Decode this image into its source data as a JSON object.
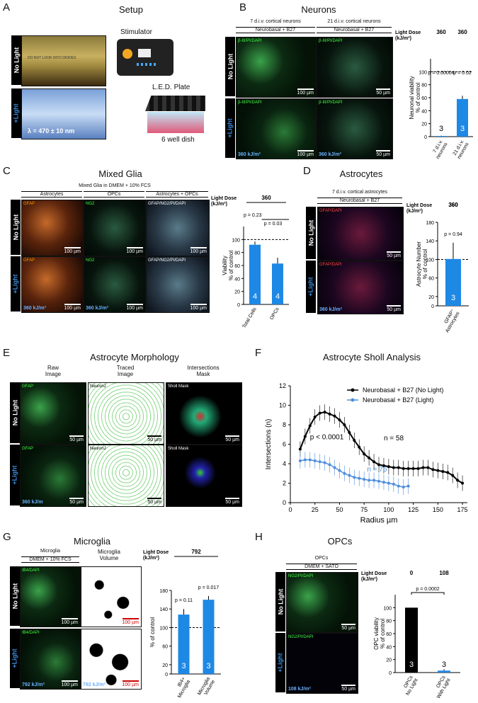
{
  "panels": {
    "A": {
      "letter": "A",
      "title": "Setup",
      "no_light": "No Light",
      "light": "+Light",
      "wavelength": "λ = 470 ± 10 nm",
      "stimulator": "Stimulator",
      "led_plate": "L.E.D. Plate",
      "dish": "6 well dish",
      "box_sticker": "DO NOT LOOK INTO DIODES"
    },
    "B": {
      "letter": "B",
      "title": "Neurons",
      "col1": "7 d.i.v. cortical neurons",
      "col2": "21 d.i.v. cortical neurons",
      "medium": "Neurobasal + B27",
      "stain": "β-III/PI/DAPI",
      "dose": "360 kJ/m²",
      "scale1": "100 µm",
      "scale2": "50 µm",
      "no_light": "No Light",
      "light": "+Light"
    },
    "C": {
      "letter": "C",
      "title": "Mixed Glia",
      "medium": "Mixed Glia in DMEM + 10% FCS",
      "cols": [
        "Astrocytes",
        "OPCs",
        "Astrocytes + OPCs"
      ],
      "stains": [
        "GFAP",
        "NG2",
        "GFAP/NG2/PI/DAPI"
      ],
      "dose": "360 kJ/m²",
      "scale": "100 µm",
      "no_light": "No Light",
      "light": "+Light"
    },
    "D": {
      "letter": "D",
      "title": "Astrocytes",
      "col": "7 d.i.v. cortical astrocytes",
      "medium": "Neurobasal + B27",
      "stain": "GFAP/DAPI",
      "dose": "360 kJ/m²",
      "scale": "50 µm",
      "no_light": "No Light",
      "light": "+Light"
    },
    "E": {
      "letter": "E",
      "title": "Astrocyte Morphology",
      "cols": [
        "Raw\nImage",
        "Traced\nImage",
        "Intersections\nMask"
      ],
      "stain": "GFAP",
      "neuronj": "NeuronJ",
      "sholl": "Sholl Mask",
      "dose": "360 kJ/m",
      "scale": "50 µm",
      "no_light": "No Light",
      "light": "+Light"
    },
    "F": {
      "letter": "F",
      "title": "Astrocyte Sholl Analysis"
    },
    "G": {
      "letter": "G",
      "title": "Microglia",
      "col1": "Microglia",
      "col2": "Microglia\nVolume",
      "medium": "DMEM + 10% FCS",
      "stain": "IB4/DAPI",
      "dose": "792 kJ/m²",
      "scale": "100 µm",
      "no_light": "No Light",
      "light": "+Light"
    },
    "H": {
      "letter": "H",
      "title": "OPCs",
      "col": "OPCs",
      "medium": "DMEM + SATO",
      "stain": "NG2/PI/DAPI",
      "dose": "108 kJ/m²",
      "scale": "50 µm",
      "no_light": "No Light",
      "light": "+Light"
    }
  },
  "chart_data": [
    {
      "id": "B",
      "type": "bar",
      "dose_header": "Light Dose\n(kJ/m²)",
      "doses": [
        "360",
        "360"
      ],
      "categories": [
        "7 d.i.v.\nneurons",
        "21 d.i.v.\nneurons"
      ],
      "values": [
        1,
        58
      ],
      "errors": [
        0.5,
        5
      ],
      "n": [
        "3",
        "3"
      ],
      "pvalues": [
        "p = 0.00004",
        "p = 0.02"
      ],
      "ylabel": "Neuronal viability\n% of control",
      "ylim": [
        0,
        120
      ],
      "yticks": [
        0,
        20,
        40,
        60,
        80,
        100
      ],
      "reference": 100,
      "color": "#1e88e5"
    },
    {
      "id": "C",
      "type": "bar",
      "dose_header": "Light Dose\n(kJ/m²)",
      "doses": [
        "360"
      ],
      "categories": [
        "Total Cells",
        "OPCs"
      ],
      "values": [
        92,
        63
      ],
      "errors": [
        5,
        9
      ],
      "n": [
        "4",
        "4"
      ],
      "pvalues": [
        "p = 0.23",
        "p = 0.03"
      ],
      "ylabel": "Viability\n% of control",
      "ylim": [
        0,
        120
      ],
      "yticks": [
        0,
        20,
        40,
        60,
        80,
        100
      ],
      "reference": 100,
      "color": "#1e88e5"
    },
    {
      "id": "D",
      "type": "bar",
      "dose_header": "Light Dose\n(kJ/m²)",
      "doses": [
        "360"
      ],
      "categories": [
        "GFAP⁺\nAstrocytes"
      ],
      "values": [
        101
      ],
      "errors": [
        35
      ],
      "n": [
        "3"
      ],
      "pvalues": [
        "p = 0.94"
      ],
      "ylabel": "Astrocyte Number\n% of control",
      "ylim": [
        0,
        180
      ],
      "yticks": [
        0,
        20,
        60,
        100,
        140,
        180
      ],
      "reference": 100,
      "color": "#1e88e5"
    },
    {
      "id": "F",
      "type": "line",
      "xlabel": "Radius µm",
      "ylabel": "Intersections (n)",
      "xlim": [
        0,
        180
      ],
      "ylim": [
        0,
        12
      ],
      "xticks": [
        0,
        25,
        50,
        75,
        100,
        125,
        150,
        175
      ],
      "yticks": [
        0,
        2,
        4,
        6,
        8,
        10,
        12
      ],
      "series": [
        {
          "name": "Neurobasal + B27 (No Light)",
          "color": "#000000",
          "x": [
            10,
            15,
            20,
            25,
            30,
            35,
            40,
            45,
            50,
            55,
            60,
            65,
            70,
            75,
            80,
            85,
            90,
            95,
            100,
            105,
            110,
            115,
            120,
            125,
            130,
            135,
            140,
            145,
            150,
            155,
            160,
            165,
            170,
            175
          ],
          "y": [
            5.5,
            6.8,
            7.9,
            8.8,
            9.2,
            9.3,
            9.1,
            8.9,
            8.5,
            8.0,
            7.2,
            6.4,
            5.7,
            5.0,
            4.6,
            4.2,
            3.9,
            3.8,
            3.7,
            3.6,
            3.6,
            3.5,
            3.5,
            3.5,
            3.5,
            3.6,
            3.6,
            3.4,
            3.3,
            3.2,
            3.1,
            2.8,
            2.3,
            2.0
          ]
        },
        {
          "name": "Neurobasal + B27 (Light)",
          "color": "#4f8fdc",
          "x": [
            10,
            15,
            20,
            25,
            30,
            35,
            40,
            45,
            50,
            55,
            60,
            65,
            70,
            75,
            80,
            85,
            90,
            95,
            100,
            105,
            110,
            115,
            120
          ],
          "y": [
            4.3,
            4.4,
            4.4,
            4.3,
            4.2,
            4.1,
            3.9,
            3.6,
            3.3,
            3.0,
            2.8,
            2.6,
            2.5,
            2.4,
            2.3,
            2.3,
            2.2,
            2.1,
            2.0,
            1.9,
            1.7,
            1.6,
            1.7
          ]
        }
      ],
      "annotations": [
        "p < 0.0001",
        "n = 58",
        "n = 76"
      ]
    },
    {
      "id": "G",
      "type": "bar",
      "dose_header": "Light Dose\n(kJ/m²)",
      "doses": [
        "792"
      ],
      "categories": [
        "IB4+\nMicroglia",
        "Microglia\nVolume"
      ],
      "values": [
        128,
        160
      ],
      "errors": [
        12,
        8
      ],
      "n": [
        "3",
        "3"
      ],
      "pvalues": [
        "p = 0.11",
        "p = 0.017"
      ],
      "ylabel": "% of control",
      "ylim": [
        0,
        180
      ],
      "yticks": [
        0,
        20,
        60,
        100,
        140,
        180
      ],
      "reference": 100,
      "color": "#1e88e5"
    },
    {
      "id": "H",
      "type": "bar",
      "dose_header": "Light Dose\n(kJ/m²)",
      "doses": [
        "0",
        "108"
      ],
      "categories": [
        "OPCs\nNo Light",
        "OPCs\nWith Light"
      ],
      "values": [
        100,
        3
      ],
      "errors": [
        0,
        2
      ],
      "n": [
        "3",
        "3"
      ],
      "colors": [
        "#000000",
        "#1e88e5"
      ],
      "pvalues": [
        "p = 0.0002"
      ],
      "ylabel": "OPC viability\n% of control",
      "ylim": [
        0,
        120
      ],
      "yticks": [
        0,
        20,
        40,
        60,
        80,
        100
      ],
      "reference": null
    }
  ]
}
